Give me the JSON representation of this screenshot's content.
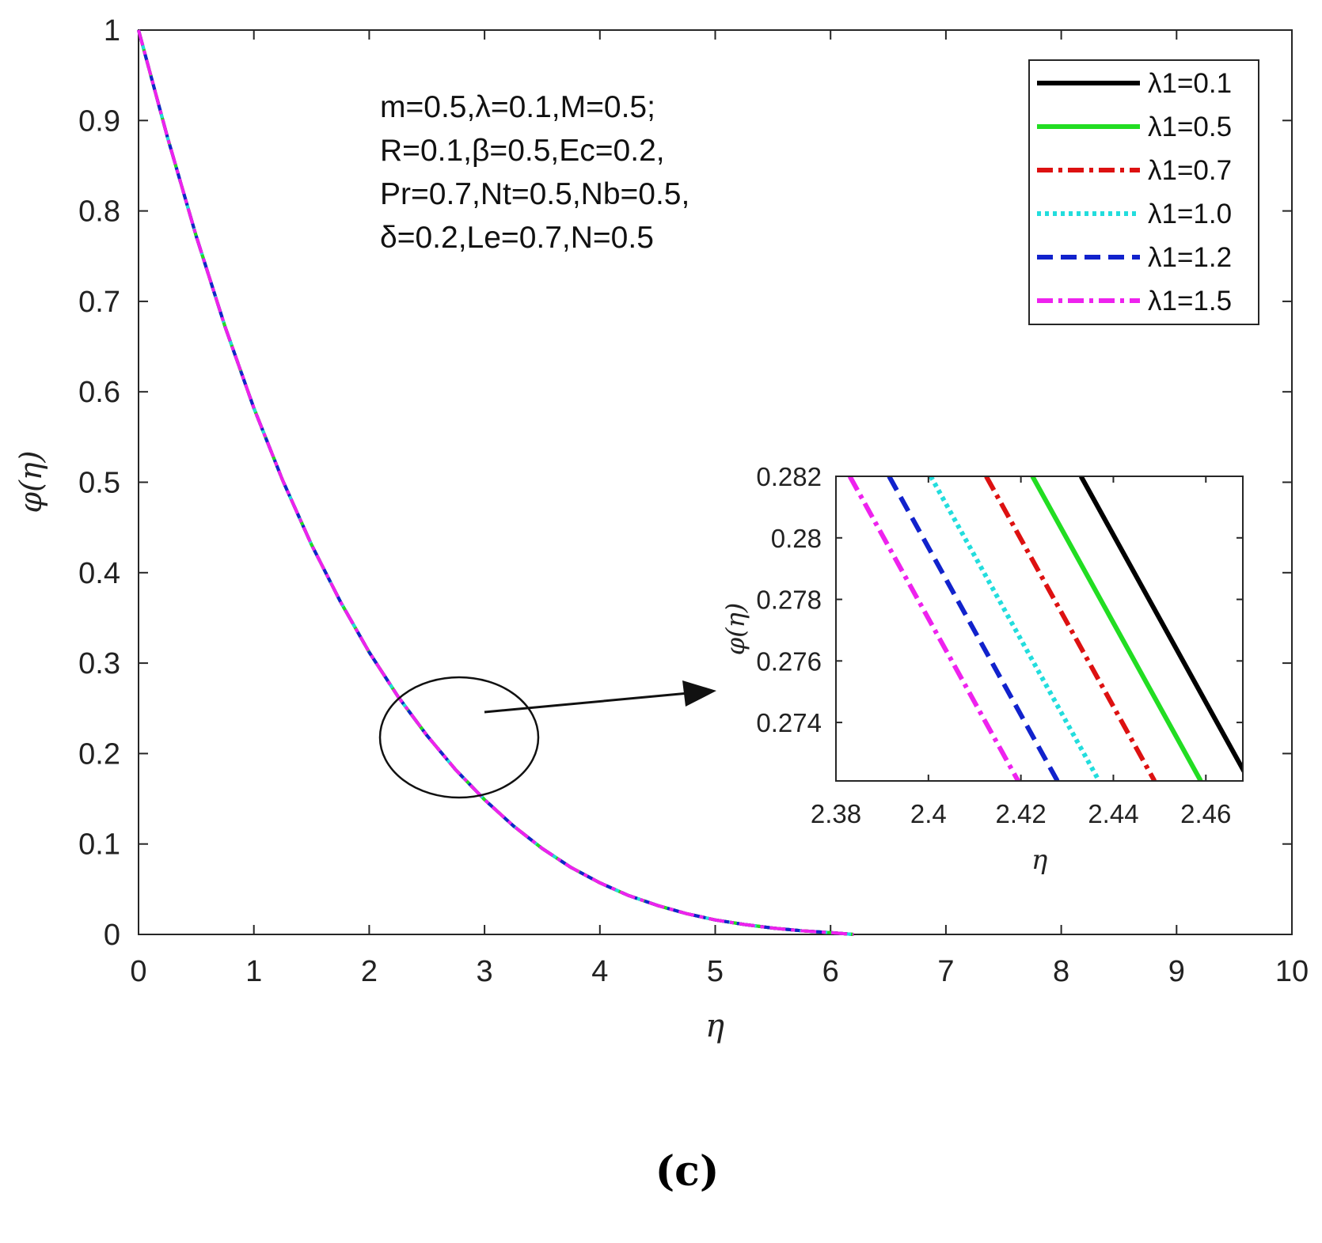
{
  "chart_data": {
    "type": "line",
    "xlabel": "η",
    "ylabel": "φ(η)",
    "xlim": [
      0,
      10
    ],
    "ylim": [
      0,
      1
    ],
    "x_ticks": [
      "0",
      "1",
      "2",
      "3",
      "4",
      "5",
      "6",
      "7",
      "8",
      "9",
      "10"
    ],
    "y_ticks": [
      "0",
      "0.1",
      "0.2",
      "0.3",
      "0.4",
      "0.5",
      "0.6",
      "0.7",
      "0.8",
      "0.9",
      "1"
    ],
    "x": [
      0,
      0.25,
      0.5,
      0.75,
      1.0,
      1.25,
      1.5,
      1.75,
      2.0,
      2.25,
      2.5,
      2.75,
      3.0,
      3.25,
      3.5,
      3.75,
      4.0,
      4.25,
      4.5,
      4.75,
      5.0,
      5.25,
      5.5,
      5.75,
      6.0,
      6.2
    ],
    "series": [
      {
        "name": "λ1=0.1",
        "color": "#000000",
        "dash": "solid",
        "shift": 0.036,
        "values": [
          1.0,
          0.882,
          0.772,
          0.672,
          0.582,
          0.502,
          0.431,
          0.368,
          0.312,
          0.263,
          0.22,
          0.182,
          0.149,
          0.12,
          0.095,
          0.074,
          0.057,
          0.043,
          0.032,
          0.023,
          0.016,
          0.011,
          0.007,
          0.004,
          0.002,
          0.0
        ]
      },
      {
        "name": "λ1=0.5",
        "color": "#22dd22",
        "dash": "solid",
        "shift": 0.026,
        "values": [
          1.0,
          0.882,
          0.772,
          0.672,
          0.582,
          0.502,
          0.431,
          0.368,
          0.312,
          0.263,
          0.22,
          0.182,
          0.149,
          0.12,
          0.095,
          0.074,
          0.057,
          0.043,
          0.032,
          0.023,
          0.016,
          0.011,
          0.007,
          0.004,
          0.002,
          0.0
        ]
      },
      {
        "name": "λ1=0.7",
        "color": "#dd1111",
        "dash": "dashdot",
        "shift": 0.016,
        "values": [
          1.0,
          0.882,
          0.772,
          0.672,
          0.582,
          0.502,
          0.431,
          0.368,
          0.312,
          0.263,
          0.22,
          0.182,
          0.149,
          0.12,
          0.095,
          0.074,
          0.057,
          0.043,
          0.032,
          0.023,
          0.016,
          0.011,
          0.007,
          0.004,
          0.002,
          0.0
        ]
      },
      {
        "name": "λ1=1.0",
        "color": "#22dddd",
        "dash": "dotted",
        "shift": 0.007,
        "values": [
          1.0,
          0.882,
          0.772,
          0.672,
          0.582,
          0.502,
          0.431,
          0.368,
          0.312,
          0.263,
          0.22,
          0.182,
          0.149,
          0.12,
          0.095,
          0.074,
          0.057,
          0.043,
          0.032,
          0.023,
          0.016,
          0.011,
          0.007,
          0.004,
          0.002,
          0.0
        ]
      },
      {
        "name": "λ1=1.2",
        "color": "#1122cc",
        "dash": "dashed",
        "shift": -0.002,
        "values": [
          1.0,
          0.882,
          0.772,
          0.672,
          0.582,
          0.502,
          0.431,
          0.368,
          0.312,
          0.263,
          0.22,
          0.182,
          0.149,
          0.12,
          0.095,
          0.074,
          0.057,
          0.043,
          0.032,
          0.023,
          0.016,
          0.011,
          0.007,
          0.004,
          0.002,
          0.0
        ]
      },
      {
        "name": "λ1=1.5",
        "color": "#ee22ee",
        "dash": "dashdot",
        "shift": -0.013,
        "values": [
          1.0,
          0.882,
          0.772,
          0.672,
          0.582,
          0.502,
          0.431,
          0.368,
          0.312,
          0.263,
          0.22,
          0.182,
          0.149,
          0.12,
          0.095,
          0.074,
          0.057,
          0.043,
          0.032,
          0.023,
          0.016,
          0.011,
          0.007,
          0.004,
          0.002,
          0.0
        ]
      }
    ],
    "annotation": [
      "m=0.5,λ=0.1,M=0.5;",
      "R=0.1,β=0.5,Ec=0.2,",
      "Pr=0.7,Nt=0.5,Nb=0.5,",
      "δ=0.2,Le=0.7,N=0.5"
    ],
    "legend_position": "top-right",
    "inset": {
      "xlabel": "η",
      "ylabel": "φ(η)",
      "xlim": [
        2.38,
        2.468
      ],
      "ylim": [
        0.2721,
        0.282
      ],
      "x_ticks": [
        2.38,
        2.4,
        2.42,
        2.44,
        2.46
      ],
      "x_tick_labels": [
        "2.38",
        "2.4",
        "2.42",
        "2.44",
        "2.46"
      ],
      "y_ticks": [
        0.274,
        0.276,
        0.278,
        0.28,
        0.282
      ],
      "y_tick_labels": [
        "0.274",
        "0.276",
        "0.278",
        "0.28",
        "0.282"
      ],
      "slope": -0.272,
      "x_at_top": [
        2.433,
        2.4225,
        2.4125,
        2.4005,
        2.3915,
        2.383
      ]
    },
    "panel_label": "(c)"
  }
}
